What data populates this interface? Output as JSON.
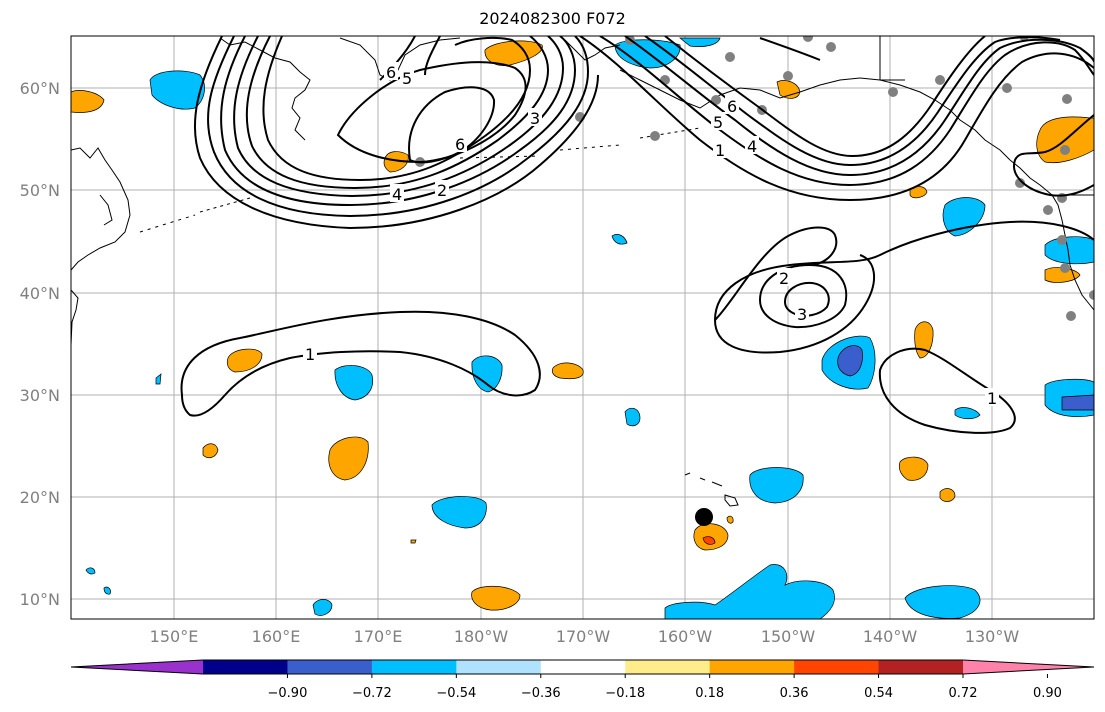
{
  "title": "2024082300 F072",
  "map": {
    "lat_ticks": [
      "60°N",
      "50°N",
      "40°N",
      "30°N",
      "20°N",
      "10°N"
    ],
    "lon_ticks": [
      "150°E",
      "160°E",
      "170°E",
      "180°W",
      "170°W",
      "160°W",
      "150°W",
      "140°W",
      "130°W"
    ],
    "contour_labels": [
      "6",
      "5",
      "3",
      "6",
      "4",
      "2",
      "6",
      "5",
      "1",
      "4",
      "2",
      "3",
      "1",
      "1"
    ]
  },
  "colorbar": {
    "colors": [
      "#9932cc",
      "#00008b",
      "#3a5fcd",
      "#00bfff",
      "#b0e2ff",
      "#ffffff",
      "#ffec8b",
      "#ffa500",
      "#ff4500",
      "#b22222",
      "#ff82ab"
    ],
    "labels": [
      "−0.90",
      "−0.72",
      "−0.54",
      "−0.36",
      "−0.18",
      "0.18",
      "0.36",
      "0.54",
      "0.72",
      "0.90"
    ]
  }
}
